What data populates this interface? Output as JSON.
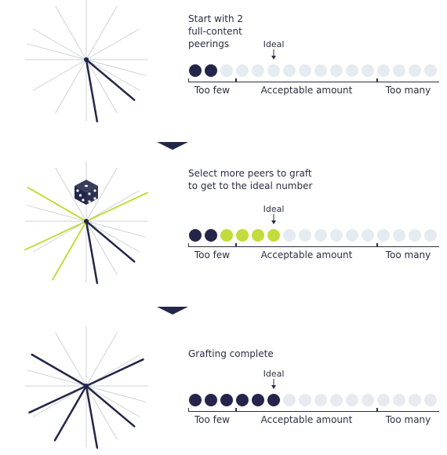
{
  "colors": {
    "dark": "#23264a",
    "green": "#c5db3c",
    "empty": "#e6ebf1",
    "gray_line": "#cfd2d6",
    "text": "#2b2d42"
  },
  "total_slots": 16,
  "ranges": {
    "too_few": "Too few",
    "acceptable": "Acceptable amount",
    "too_many": "Too many"
  },
  "ideal_label": "Ideal",
  "panels": [
    {
      "caption": "Start with 2\nfull-content\npeerings",
      "dots_dark": 2,
      "dots_green": 0,
      "star_gray_angles": [
        0,
        30,
        60,
        90,
        120,
        150,
        180,
        210,
        240,
        270,
        300,
        330,
        15,
        195
      ],
      "star_dark_angles": [
        40,
        80
      ],
      "star_green_angles": [],
      "icon": ""
    },
    {
      "caption": "Select more peers to graft\nto get to the ideal number",
      "dots_dark": 2,
      "dots_green": 4,
      "star_gray_angles": [
        0,
        30,
        60,
        90,
        120,
        150,
        180,
        210,
        240,
        270,
        300,
        330,
        15,
        195
      ],
      "star_dark_angles": [
        40,
        80
      ],
      "star_green_angles": [
        -25,
        155,
        210,
        120
      ],
      "icon": "dice-icon"
    },
    {
      "caption": "Grafting complete",
      "dots_dark": 6,
      "dots_green": 0,
      "star_gray_angles": [
        0,
        30,
        60,
        90,
        120,
        150,
        180,
        210,
        240,
        270,
        300,
        330,
        15,
        195
      ],
      "star_dark_angles": [
        40,
        80,
        -25,
        155,
        210,
        120
      ],
      "star_green_angles": [],
      "icon": ""
    }
  ]
}
